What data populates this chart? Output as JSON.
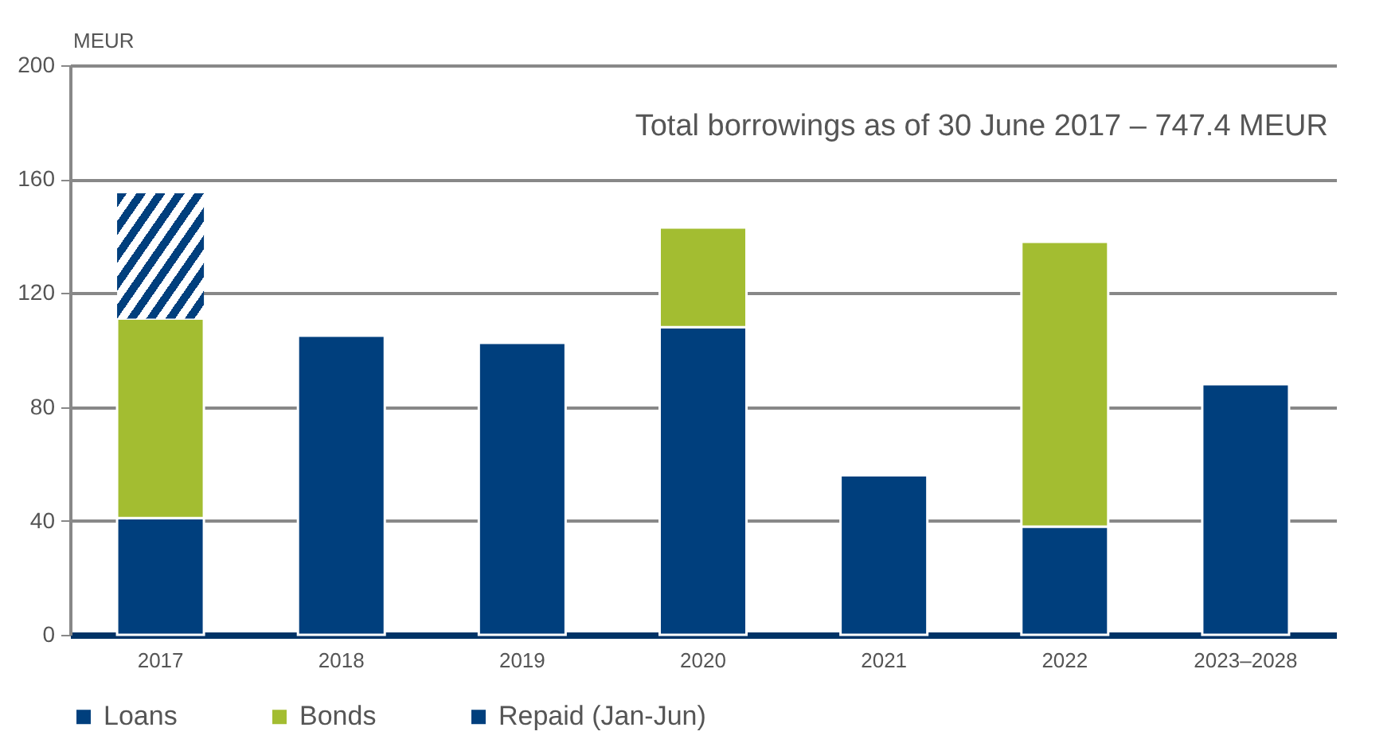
{
  "chart_data": {
    "type": "bar",
    "stacked": true,
    "ylabel": "MEUR",
    "annotations": [
      "Total borrowings as of 30 June 2017 – 747.4 MEUR"
    ],
    "categories": [
      "2017",
      "2018",
      "2019",
      "2020",
      "2021",
      "2022",
      "2023–2028"
    ],
    "series": [
      {
        "name": "Loans",
        "color": "#003f7d",
        "values": [
          41,
          105,
          102.5,
          108,
          56,
          38,
          88
        ]
      },
      {
        "name": "Bonds",
        "color": "#a3bd31",
        "values": [
          70,
          null,
          null,
          35,
          null,
          100,
          null
        ]
      },
      {
        "name": "Repaid (Jan-Jun)",
        "color": "#003f7d",
        "values": [
          44,
          null,
          null,
          null,
          null,
          null,
          null
        ]
      }
    ],
    "ylim": [
      0,
      200
    ],
    "yticks": [
      0,
      40,
      80,
      120,
      160,
      200
    ],
    "grid": "y",
    "legend": "bottom"
  }
}
